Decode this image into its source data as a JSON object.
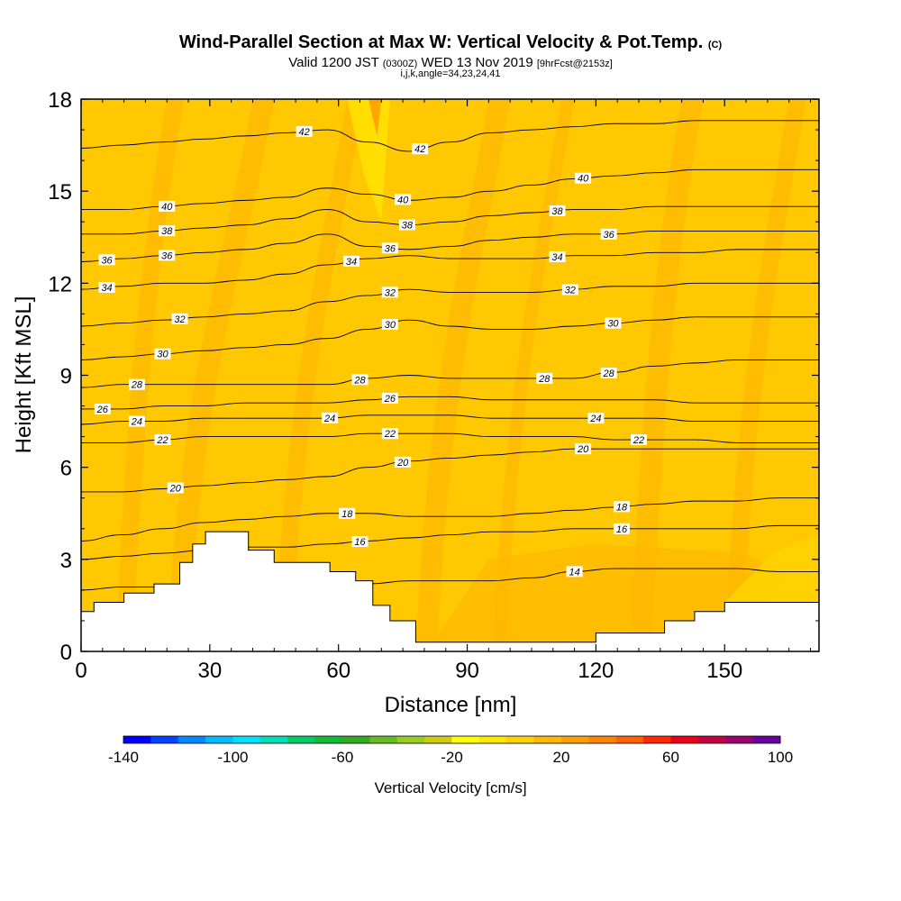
{
  "header": {
    "title_main": "Wind-Parallel Section at Max W: Vertical Velocity & Pot.Temp.",
    "title_unit": "(C)",
    "valid_a": "Valid 1200 JST",
    "valid_b": "(0300Z)",
    "valid_c": "WED 13 Nov 2019",
    "valid_d": "[9hrFcst@2153z]",
    "indices": "i,j,k,angle=34,23,24,41"
  },
  "chart_data": {
    "type": "heatmap",
    "xlabel": "Distance [nm]",
    "ylabel": "Height [Kft MSL]",
    "xlim": [
      0,
      172
    ],
    "ylim": [
      0,
      18
    ],
    "x_ticks": [
      "0",
      "30",
      "60",
      "90",
      "120",
      "150"
    ],
    "y_ticks": [
      "0",
      "3",
      "6",
      "9",
      "12",
      "15",
      "18"
    ],
    "dominant_value_range_cm_s": [
      0,
      20
    ],
    "colorbar": {
      "label": "Vertical Velocity [cm/s]",
      "tick_labels": [
        "-140",
        "-100",
        "-60",
        "-20",
        "20",
        "60",
        "100"
      ],
      "min": -140,
      "max": 100,
      "step": 10,
      "colors": [
        "#0000ff",
        "#0044ff",
        "#0088ff",
        "#00bbff",
        "#00e0ff",
        "#00ddb0",
        "#00cc66",
        "#11bb33",
        "#33aa22",
        "#66bb22",
        "#99cc22",
        "#cccc11",
        "#ffff00",
        "#ffe800",
        "#ffd100",
        "#ffb800",
        "#ff9f00",
        "#ff8500",
        "#ff6000",
        "#ff2a00",
        "#e8001c",
        "#c00040",
        "#9a0070",
        "#6a00a0"
      ]
    },
    "terrain_profile": {
      "x_nm": [
        0,
        3,
        3,
        10,
        10,
        17,
        17,
        23,
        23,
        26,
        26,
        29,
        29,
        33,
        33,
        39,
        39,
        45,
        45,
        58,
        58,
        64,
        64,
        68,
        68,
        72,
        72,
        78,
        78,
        120,
        120,
        136,
        136,
        143,
        143,
        150,
        150,
        172
      ],
      "height_kft": [
        1.3,
        1.3,
        1.6,
        1.6,
        1.9,
        1.9,
        2.2,
        2.2,
        2.9,
        2.9,
        3.5,
        3.5,
        3.9,
        3.9,
        3.9,
        3.9,
        3.3,
        3.3,
        2.9,
        2.9,
        2.6,
        2.6,
        2.3,
        2.3,
        1.5,
        1.5,
        1.0,
        1.0,
        0.3,
        0.3,
        0.6,
        0.6,
        1.0,
        1.0,
        1.3,
        1.3,
        1.6,
        1.6
      ]
    },
    "theta_contours": [
      {
        "label": "14",
        "heights_kft": [
          2.0,
          2.1,
          2.1,
          2.1,
          2.0,
          2.1,
          2.2,
          2.2,
          2.3,
          2.3,
          2.3,
          2.4,
          2.6,
          2.7,
          2.7,
          2.7,
          2.7,
          2.6,
          2.6
        ],
        "labels_at_nm": [
          115
        ]
      },
      {
        "label": "16",
        "heights_kft": [
          3.0,
          3.1,
          3.2,
          3.3,
          3.4,
          3.4,
          3.5,
          3.6,
          3.7,
          3.8,
          3.9,
          3.9,
          4.0,
          4.0,
          4.0,
          4.0,
          4.0,
          4.1,
          4.1
        ],
        "labels_at_nm": [
          65,
          126
        ]
      },
      {
        "label": "18",
        "heights_kft": [
          3.6,
          3.8,
          4.0,
          4.2,
          4.3,
          4.4,
          4.5,
          4.5,
          4.4,
          4.4,
          4.4,
          4.5,
          4.6,
          4.7,
          4.8,
          4.9,
          4.9,
          5.0,
          5.0
        ],
        "labels_at_nm": [
          62,
          126
        ]
      },
      {
        "label": "20",
        "heights_kft": [
          5.2,
          5.2,
          5.3,
          5.4,
          5.5,
          5.6,
          5.7,
          6.0,
          6.2,
          6.3,
          6.4,
          6.5,
          6.6,
          6.6,
          6.6,
          6.6,
          6.6,
          6.6,
          6.6
        ],
        "labels_at_nm": [
          22,
          75,
          117
        ]
      },
      {
        "label": "22",
        "heights_kft": [
          6.8,
          6.8,
          6.9,
          7.0,
          7.0,
          7.0,
          7.0,
          7.1,
          7.1,
          7.1,
          7.0,
          7.0,
          7.0,
          6.9,
          6.9,
          6.9,
          6.8,
          6.8,
          6.8
        ],
        "labels_at_nm": [
          19,
          72,
          130
        ]
      },
      {
        "label": "24",
        "heights_kft": [
          7.4,
          7.5,
          7.5,
          7.6,
          7.6,
          7.6,
          7.6,
          7.7,
          7.7,
          7.7,
          7.6,
          7.6,
          7.6,
          7.6,
          7.6,
          7.5,
          7.5,
          7.5,
          7.5
        ],
        "labels_at_nm": [
          13,
          58,
          120
        ]
      },
      {
        "label": "26",
        "heights_kft": [
          7.9,
          7.9,
          8.0,
          8.0,
          8.1,
          8.1,
          8.1,
          8.2,
          8.3,
          8.3,
          8.2,
          8.2,
          8.2,
          8.2,
          8.2,
          8.1,
          8.1,
          8.1,
          8.1
        ],
        "labels_at_nm": [
          5,
          72
        ]
      },
      {
        "label": "28",
        "heights_kft": [
          8.6,
          8.7,
          8.7,
          8.7,
          8.7,
          8.7,
          8.7,
          8.9,
          9.0,
          8.9,
          8.9,
          8.9,
          8.9,
          9.1,
          9.3,
          9.4,
          9.5,
          9.5,
          9.5
        ],
        "labels_at_nm": [
          13,
          65,
          108,
          123
        ]
      },
      {
        "label": "30",
        "heights_kft": [
          9.5,
          9.6,
          9.7,
          9.8,
          9.9,
          10.0,
          10.2,
          10.5,
          10.8,
          10.6,
          10.5,
          10.5,
          10.6,
          10.7,
          10.8,
          10.9,
          10.9,
          10.9,
          10.9
        ],
        "labels_at_nm": [
          19,
          72,
          124
        ]
      },
      {
        "label": "32",
        "heights_kft": [
          10.6,
          10.7,
          10.8,
          10.9,
          11.0,
          11.1,
          11.4,
          11.6,
          11.8,
          11.7,
          11.7,
          11.7,
          11.8,
          11.9,
          11.9,
          12.0,
          12.0,
          12.0,
          12.0
        ],
        "labels_at_nm": [
          23,
          72,
          114
        ]
      },
      {
        "label": "34",
        "heights_kft": [
          11.8,
          11.9,
          12.0,
          12.0,
          12.1,
          12.3,
          12.6,
          12.8,
          12.9,
          12.8,
          12.8,
          12.8,
          12.9,
          12.9,
          13.0,
          13.0,
          13.1,
          13.1,
          13.1
        ],
        "labels_at_nm": [
          6,
          63,
          111
        ]
      },
      {
        "label": "36",
        "heights_kft": [
          12.7,
          12.8,
          12.9,
          13.0,
          13.1,
          13.3,
          13.6,
          13.2,
          13.1,
          13.2,
          13.4,
          13.5,
          13.6,
          13.6,
          13.7,
          13.7,
          13.7,
          13.7,
          13.7
        ],
        "labels_at_nm": [
          6,
          20,
          72,
          123
        ]
      },
      {
        "label": "38",
        "heights_kft": [
          13.6,
          13.6,
          13.7,
          13.8,
          13.9,
          14.1,
          14.4,
          14.0,
          13.9,
          14.0,
          14.2,
          14.3,
          14.4,
          14.4,
          14.5,
          14.5,
          14.5,
          14.5,
          14.5
        ],
        "labels_at_nm": [
          20,
          76,
          111
        ]
      },
      {
        "label": "40",
        "heights_kft": [
          14.4,
          14.4,
          14.5,
          14.6,
          14.7,
          14.8,
          15.1,
          14.9,
          14.7,
          14.8,
          15.0,
          15.2,
          15.4,
          15.5,
          15.6,
          15.7,
          15.7,
          15.7,
          15.7
        ],
        "labels_at_nm": [
          20,
          75,
          117
        ]
      },
      {
        "label": "42",
        "heights_kft": [
          16.4,
          16.5,
          16.6,
          16.7,
          16.8,
          16.9,
          17.0,
          16.6,
          16.3,
          16.6,
          16.9,
          17.0,
          17.1,
          17.2,
          17.2,
          17.3,
          17.3,
          17.3,
          17.3
        ],
        "labels_at_nm": [
          52,
          79
        ]
      }
    ]
  }
}
